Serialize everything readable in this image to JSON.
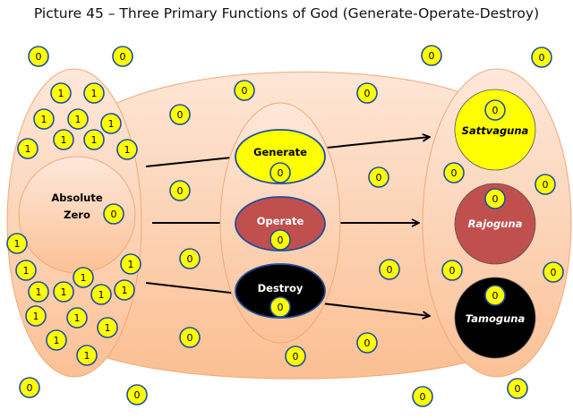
{
  "title": "Picture 45 – Three Primary Functions of God (Generate-Operate-Destroy)",
  "labels": {
    "absolute_zero_line1": "Absolute",
    "absolute_zero_line2": "Zero",
    "generate": "Generate",
    "operate": "Operate",
    "destroy": "Destroy",
    "sattvaguna": "Sattvaguna",
    "rajoguna": "Rajoguna",
    "tamoguna": "Tamoguna"
  },
  "coin_values": {
    "zero": "0",
    "one": "1"
  },
  "colors": {
    "coin_fill": "#ffff00",
    "coin_border": "#1f4e9a",
    "generate": "#ffff00",
    "operate": "#c0504d",
    "destroy": "#000000",
    "background_shape_top": "#fde6d6",
    "background_shape_bottom": "#fbbf92"
  }
}
